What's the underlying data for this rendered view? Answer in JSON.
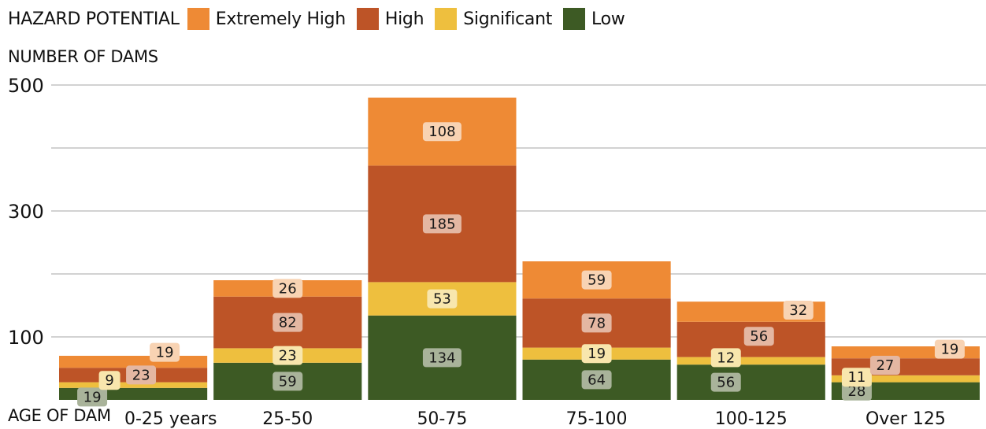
{
  "chart_data": {
    "type": "bar",
    "stacked": true,
    "legend_title": "HAZARD POTENTIAL",
    "ylabel": "NUMBER OF DAMS",
    "xlabel": "AGE OF DAM",
    "categories": [
      "0-25 years",
      "25-50",
      "50-75",
      "75-100",
      "100-125",
      "Over 125"
    ],
    "ylim": [
      0,
      500
    ],
    "yticks": [
      100,
      300,
      500
    ],
    "grid": true,
    "legend_position": "top-left",
    "series": [
      {
        "name": "Low",
        "color": "#3d5a24",
        "label_bg": "#a9b39a",
        "values": [
          19,
          59,
          134,
          64,
          56,
          28
        ]
      },
      {
        "name": "Significant",
        "color": "#eebf3e",
        "label_bg": "#f8e6ad",
        "values": [
          9,
          23,
          53,
          19,
          12,
          11
        ]
      },
      {
        "name": "High",
        "color": "#bd5427",
        "label_bg": "#e4b7a2",
        "values": [
          23,
          82,
          185,
          78,
          56,
          27
        ]
      },
      {
        "name": "Extremely High",
        "color": "#ee8a35",
        "label_bg": "#f8d3b3",
        "values": [
          19,
          26,
          108,
          59,
          32,
          19
        ]
      }
    ],
    "legend_order": [
      "Extremely High",
      "High",
      "Significant",
      "Low"
    ]
  }
}
